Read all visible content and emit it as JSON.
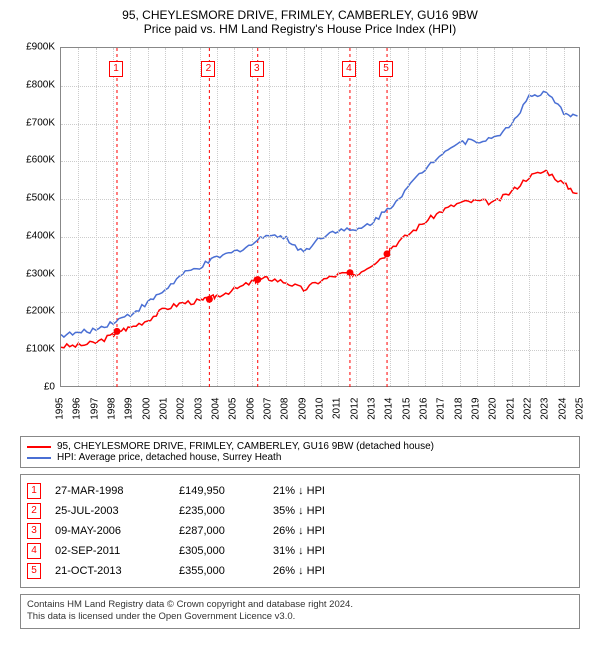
{
  "title": "95, CHEYLESMORE DRIVE, FRIMLEY, CAMBERLEY, GU16 9BW",
  "subtitle": "Price paid vs. HM Land Registry's House Price Index (HPI)",
  "chart": {
    "type": "line",
    "background_color": "#ffffff",
    "grid_color": "#cccccc",
    "border_color": "#888888",
    "ylabel_prefix": "£",
    "ylim": [
      0,
      900
    ],
    "ytick_step": 100,
    "yticks": [
      "£0",
      "£100K",
      "£200K",
      "£300K",
      "£400K",
      "£500K",
      "£600K",
      "£700K",
      "£800K",
      "£900K"
    ],
    "xlim": [
      1995,
      2025
    ],
    "xticks": [
      1995,
      1996,
      1997,
      1998,
      1999,
      2000,
      2001,
      2002,
      2003,
      2004,
      2005,
      2006,
      2007,
      2008,
      2009,
      2010,
      2011,
      2012,
      2013,
      2014,
      2015,
      2016,
      2017,
      2018,
      2019,
      2020,
      2021,
      2022,
      2023,
      2024,
      2025
    ],
    "label_fontsize": 10,
    "line_width": 1.5,
    "series": [
      {
        "id": "price_paid",
        "color": "#ff0000",
        "points": [
          [
            1995,
            110
          ],
          [
            1996,
            112
          ],
          [
            1997,
            120
          ],
          [
            1998,
            140
          ],
          [
            1998.23,
            149.95
          ],
          [
            1999,
            160
          ],
          [
            2000,
            180
          ],
          [
            2001,
            210
          ],
          [
            2002,
            225
          ],
          [
            2003,
            230
          ],
          [
            2003.56,
            235
          ],
          [
            2004,
            245
          ],
          [
            2005,
            260
          ],
          [
            2006,
            280
          ],
          [
            2006.35,
            287
          ],
          [
            2007,
            290
          ],
          [
            2008,
            280
          ],
          [
            2009,
            260
          ],
          [
            2010,
            285
          ],
          [
            2011,
            300
          ],
          [
            2011.67,
            305
          ],
          [
            2012,
            300
          ],
          [
            2013,
            330
          ],
          [
            2013.81,
            355
          ],
          [
            2014,
            370
          ],
          [
            2015,
            405
          ],
          [
            2016,
            440
          ],
          [
            2017,
            470
          ],
          [
            2018,
            490
          ],
          [
            2019,
            495
          ],
          [
            2020,
            490
          ],
          [
            2021,
            520
          ],
          [
            2022,
            560
          ],
          [
            2023,
            575
          ],
          [
            2024,
            540
          ],
          [
            2024.8,
            515
          ]
        ]
      },
      {
        "id": "hpi",
        "color": "#4a6fd4",
        "points": [
          [
            1995,
            140
          ],
          [
            1996,
            145
          ],
          [
            1997,
            155
          ],
          [
            1998,
            175
          ],
          [
            1999,
            195
          ],
          [
            2000,
            225
          ],
          [
            2001,
            260
          ],
          [
            2002,
            300
          ],
          [
            2003,
            320
          ],
          [
            2004,
            345
          ],
          [
            2005,
            360
          ],
          [
            2006,
            380
          ],
          [
            2007,
            410
          ],
          [
            2008,
            395
          ],
          [
            2009,
            360
          ],
          [
            2010,
            400
          ],
          [
            2011,
            420
          ],
          [
            2012,
            415
          ],
          [
            2013,
            440
          ],
          [
            2014,
            480
          ],
          [
            2015,
            530
          ],
          [
            2016,
            580
          ],
          [
            2017,
            625
          ],
          [
            2018,
            650
          ],
          [
            2019,
            655
          ],
          [
            2020,
            660
          ],
          [
            2021,
            700
          ],
          [
            2022,
            770
          ],
          [
            2023,
            780
          ],
          [
            2024,
            730
          ],
          [
            2024.8,
            720
          ]
        ]
      }
    ],
    "sale_markers": [
      {
        "idx": "1",
        "x": 1998.23,
        "y_price": 149.95
      },
      {
        "idx": "2",
        "x": 2003.56,
        "y_price": 235
      },
      {
        "idx": "3",
        "x": 2006.35,
        "y_price": 287
      },
      {
        "idx": "4",
        "x": 2011.67,
        "y_price": 305
      },
      {
        "idx": "5",
        "x": 2013.81,
        "y_price": 355
      }
    ],
    "marker_color": "#ff0000",
    "marker_vline_dash": "3,3"
  },
  "legend": {
    "items": [
      {
        "color": "#ff0000",
        "label": "95, CHEYLESMORE DRIVE, FRIMLEY, CAMBERLEY, GU16 9BW (detached house)"
      },
      {
        "color": "#4a6fd4",
        "label": "HPI: Average price, detached house, Surrey Heath"
      }
    ]
  },
  "sales_table": {
    "rows": [
      {
        "idx": "1",
        "date": "27-MAR-1998",
        "price": "£149,950",
        "pct": "21% ↓ HPI"
      },
      {
        "idx": "2",
        "date": "25-JUL-2003",
        "price": "£235,000",
        "pct": "35% ↓ HPI"
      },
      {
        "idx": "3",
        "date": "09-MAY-2006",
        "price": "£287,000",
        "pct": "26% ↓ HPI"
      },
      {
        "idx": "4",
        "date": "02-SEP-2011",
        "price": "£305,000",
        "pct": "31% ↓ HPI"
      },
      {
        "idx": "5",
        "date": "21-OCT-2013",
        "price": "£355,000",
        "pct": "26% ↓ HPI"
      }
    ]
  },
  "footer": {
    "line1": "Contains HM Land Registry data © Crown copyright and database right 2024.",
    "line2": "This data is licensed under the Open Government Licence v3.0."
  }
}
